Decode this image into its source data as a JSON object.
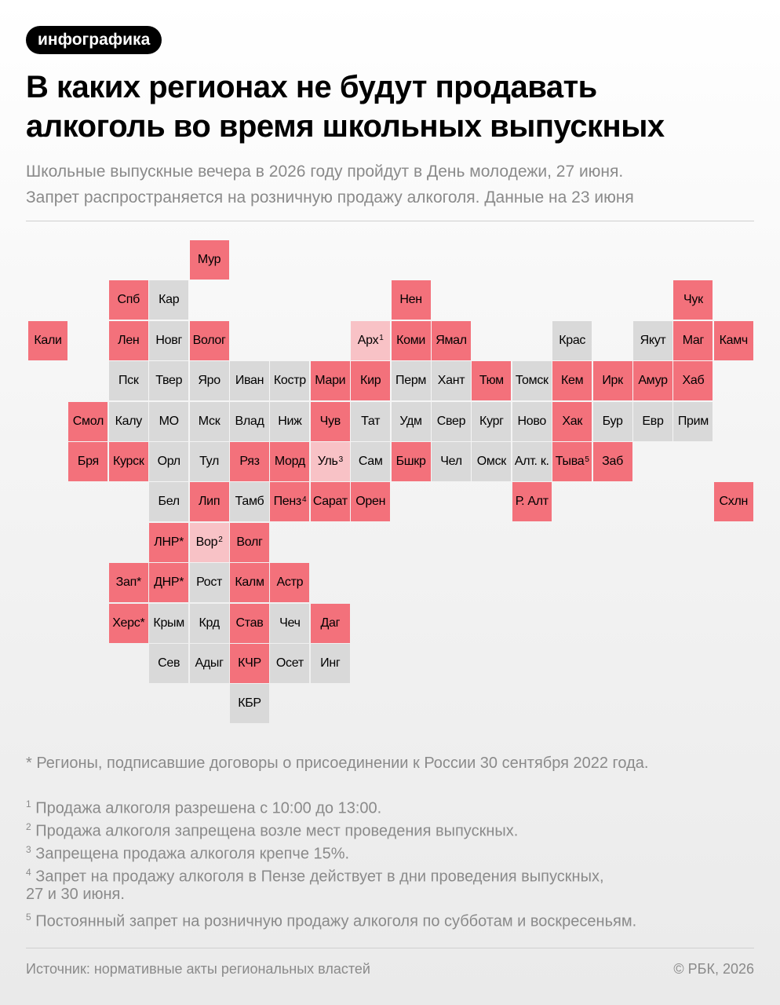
{
  "tag": "инфографика",
  "title_line1": "В каких регионах не будут продавать",
  "title_line2": "алкоголь во время школьных выпускных",
  "subtitle_line1": "Школьные выпускные вечера в 2026 году пройдут в День молодежи, 27 июня.",
  "subtitle_line2": "Запрет распространяется на розничную продажу алкоголя. Данные на 23 июня",
  "colors": {
    "full_ban": "#f3717b",
    "partial_ban": "#f8c2c6",
    "no_ban": "#d9d9d9"
  },
  "regions": [
    {
      "label": "Мур",
      "sup": "",
      "status": "full",
      "row": 0,
      "col": 4
    },
    {
      "label": "Спб",
      "sup": "",
      "status": "full",
      "row": 1,
      "col": 2
    },
    {
      "label": "Кар",
      "sup": "",
      "status": "none",
      "row": 1,
      "col": 3
    },
    {
      "label": "Нен",
      "sup": "",
      "status": "full",
      "row": 1,
      "col": 9
    },
    {
      "label": "Чук",
      "sup": "",
      "status": "full",
      "row": 1,
      "col": 16
    },
    {
      "label": "Кали",
      "sup": "",
      "status": "full",
      "row": 2,
      "col": 0
    },
    {
      "label": "Лен",
      "sup": "",
      "status": "full",
      "row": 2,
      "col": 2
    },
    {
      "label": "Новг",
      "sup": "",
      "status": "none",
      "row": 2,
      "col": 3
    },
    {
      "label": "Волог",
      "sup": "",
      "status": "full",
      "row": 2,
      "col": 4
    },
    {
      "label": "Арх",
      "sup": "1",
      "status": "part",
      "row": 2,
      "col": 8
    },
    {
      "label": "Коми",
      "sup": "",
      "status": "full",
      "row": 2,
      "col": 9
    },
    {
      "label": "Ямал",
      "sup": "",
      "status": "full",
      "row": 2,
      "col": 10
    },
    {
      "label": "Крас",
      "sup": "",
      "status": "none",
      "row": 2,
      "col": 13
    },
    {
      "label": "Якут",
      "sup": "",
      "status": "none",
      "row": 2,
      "col": 15
    },
    {
      "label": "Маг",
      "sup": "",
      "status": "full",
      "row": 2,
      "col": 16
    },
    {
      "label": "Камч",
      "sup": "",
      "status": "full",
      "row": 2,
      "col": 17
    },
    {
      "label": "Пск",
      "sup": "",
      "status": "none",
      "row": 3,
      "col": 2
    },
    {
      "label": "Твер",
      "sup": "",
      "status": "none",
      "row": 3,
      "col": 3
    },
    {
      "label": "Яро",
      "sup": "",
      "status": "none",
      "row": 3,
      "col": 4
    },
    {
      "label": "Иван",
      "sup": "",
      "status": "none",
      "row": 3,
      "col": 5
    },
    {
      "label": "Костр",
      "sup": "",
      "status": "none",
      "row": 3,
      "col": 6
    },
    {
      "label": "Мари",
      "sup": "",
      "status": "full",
      "row": 3,
      "col": 7
    },
    {
      "label": "Кир",
      "sup": "",
      "status": "full",
      "row": 3,
      "col": 8
    },
    {
      "label": "Перм",
      "sup": "",
      "status": "none",
      "row": 3,
      "col": 9
    },
    {
      "label": "Хант",
      "sup": "",
      "status": "none",
      "row": 3,
      "col": 10
    },
    {
      "label": "Тюм",
      "sup": "",
      "status": "full",
      "row": 3,
      "col": 11
    },
    {
      "label": "Томск",
      "sup": "",
      "status": "none",
      "row": 3,
      "col": 12
    },
    {
      "label": "Кем",
      "sup": "",
      "status": "full",
      "row": 3,
      "col": 13
    },
    {
      "label": "Ирк",
      "sup": "",
      "status": "full",
      "row": 3,
      "col": 14
    },
    {
      "label": "Амур",
      "sup": "",
      "status": "full",
      "row": 3,
      "col": 15
    },
    {
      "label": "Хаб",
      "sup": "",
      "status": "full",
      "row": 3,
      "col": 16
    },
    {
      "label": "Смол",
      "sup": "",
      "status": "full",
      "row": 4,
      "col": 1
    },
    {
      "label": "Калу",
      "sup": "",
      "status": "none",
      "row": 4,
      "col": 2
    },
    {
      "label": "МО",
      "sup": "",
      "status": "none",
      "row": 4,
      "col": 3
    },
    {
      "label": "Мск",
      "sup": "",
      "status": "none",
      "row": 4,
      "col": 4
    },
    {
      "label": "Влад",
      "sup": "",
      "status": "none",
      "row": 4,
      "col": 5
    },
    {
      "label": "Ниж",
      "sup": "",
      "status": "none",
      "row": 4,
      "col": 6
    },
    {
      "label": "Чув",
      "sup": "",
      "status": "full",
      "row": 4,
      "col": 7
    },
    {
      "label": "Тат",
      "sup": "",
      "status": "none",
      "row": 4,
      "col": 8
    },
    {
      "label": "Удм",
      "sup": "",
      "status": "none",
      "row": 4,
      "col": 9
    },
    {
      "label": "Свер",
      "sup": "",
      "status": "none",
      "row": 4,
      "col": 10
    },
    {
      "label": "Кург",
      "sup": "",
      "status": "none",
      "row": 4,
      "col": 11
    },
    {
      "label": "Ново",
      "sup": "",
      "status": "none",
      "row": 4,
      "col": 12
    },
    {
      "label": "Хак",
      "sup": "",
      "status": "full",
      "row": 4,
      "col": 13
    },
    {
      "label": "Бур",
      "sup": "",
      "status": "none",
      "row": 4,
      "col": 14
    },
    {
      "label": "Евр",
      "sup": "",
      "status": "none",
      "row": 4,
      "col": 15
    },
    {
      "label": "Прим",
      "sup": "",
      "status": "none",
      "row": 4,
      "col": 16
    },
    {
      "label": "Бря",
      "sup": "",
      "status": "full",
      "row": 5,
      "col": 1
    },
    {
      "label": "Курск",
      "sup": "",
      "status": "full",
      "row": 5,
      "col": 2
    },
    {
      "label": "Орл",
      "sup": "",
      "status": "none",
      "row": 5,
      "col": 3
    },
    {
      "label": "Тул",
      "sup": "",
      "status": "none",
      "row": 5,
      "col": 4
    },
    {
      "label": "Ряз",
      "sup": "",
      "status": "full",
      "row": 5,
      "col": 5
    },
    {
      "label": "Морд",
      "sup": "",
      "status": "full",
      "row": 5,
      "col": 6
    },
    {
      "label": "Уль",
      "sup": "3",
      "status": "part",
      "row": 5,
      "col": 7
    },
    {
      "label": "Сам",
      "sup": "",
      "status": "none",
      "row": 5,
      "col": 8
    },
    {
      "label": "Бшкр",
      "sup": "",
      "status": "full",
      "row": 5,
      "col": 9
    },
    {
      "label": "Чел",
      "sup": "",
      "status": "none",
      "row": 5,
      "col": 10
    },
    {
      "label": "Омск",
      "sup": "",
      "status": "none",
      "row": 5,
      "col": 11
    },
    {
      "label": "Алт. к.",
      "sup": "",
      "status": "none",
      "row": 5,
      "col": 12
    },
    {
      "label": "Тыва",
      "sup": "5",
      "status": "full",
      "row": 5,
      "col": 13
    },
    {
      "label": "Заб",
      "sup": "",
      "status": "full",
      "row": 5,
      "col": 14
    },
    {
      "label": "Бел",
      "sup": "",
      "status": "none",
      "row": 6,
      "col": 3
    },
    {
      "label": "Лип",
      "sup": "",
      "status": "full",
      "row": 6,
      "col": 4
    },
    {
      "label": "Тамб",
      "sup": "",
      "status": "none",
      "row": 6,
      "col": 5
    },
    {
      "label": "Пенз",
      "sup": "4",
      "status": "full",
      "row": 6,
      "col": 6
    },
    {
      "label": "Сарат",
      "sup": "",
      "status": "full",
      "row": 6,
      "col": 7
    },
    {
      "label": "Орен",
      "sup": "",
      "status": "full",
      "row": 6,
      "col": 8
    },
    {
      "label": "Р. Алт",
      "sup": "",
      "status": "full",
      "row": 6,
      "col": 12
    },
    {
      "label": "Схлн",
      "sup": "",
      "status": "full",
      "row": 6,
      "col": 17
    },
    {
      "label": "ЛНР*",
      "sup": "",
      "status": "full",
      "row": 7,
      "col": 3
    },
    {
      "label": "Вор",
      "sup": "2",
      "status": "part",
      "row": 7,
      "col": 4
    },
    {
      "label": "Волг",
      "sup": "",
      "status": "full",
      "row": 7,
      "col": 5
    },
    {
      "label": "Зап*",
      "sup": "",
      "status": "full",
      "row": 8,
      "col": 2
    },
    {
      "label": "ДНР*",
      "sup": "",
      "status": "full",
      "row": 8,
      "col": 3
    },
    {
      "label": "Рост",
      "sup": "",
      "status": "none",
      "row": 8,
      "col": 4
    },
    {
      "label": "Калм",
      "sup": "",
      "status": "full",
      "row": 8,
      "col": 5
    },
    {
      "label": "Астр",
      "sup": "",
      "status": "full",
      "row": 8,
      "col": 6
    },
    {
      "label": "Херс*",
      "sup": "",
      "status": "full",
      "row": 9,
      "col": 2
    },
    {
      "label": "Крым",
      "sup": "",
      "status": "none",
      "row": 9,
      "col": 3
    },
    {
      "label": "Крд",
      "sup": "",
      "status": "none",
      "row": 9,
      "col": 4
    },
    {
      "label": "Став",
      "sup": "",
      "status": "full",
      "row": 9,
      "col": 5
    },
    {
      "label": "Чеч",
      "sup": "",
      "status": "none",
      "row": 9,
      "col": 6
    },
    {
      "label": "Даг",
      "sup": "",
      "status": "full",
      "row": 9,
      "col": 7
    },
    {
      "label": "Сев",
      "sup": "",
      "status": "none",
      "row": 10,
      "col": 3
    },
    {
      "label": "Адыг",
      "sup": "",
      "status": "none",
      "row": 10,
      "col": 4
    },
    {
      "label": "КЧР",
      "sup": "",
      "status": "full",
      "row": 10,
      "col": 5
    },
    {
      "label": "Осет",
      "sup": "",
      "status": "none",
      "row": 10,
      "col": 6
    },
    {
      "label": "Инг",
      "sup": "",
      "status": "none",
      "row": 10,
      "col": 7
    },
    {
      "label": "КБР",
      "sup": "",
      "status": "none",
      "row": 11,
      "col": 5
    }
  ],
  "note_star": "* Регионы, подписавшие договоры о присоединении к России 30 сентября 2022 года.",
  "footnotes": [
    {
      "mark": "1",
      "text": "Продажа алкоголя разрешена с 10:00 до 13:00."
    },
    {
      "mark": "2",
      "text": "Продажа алкоголя запрещена возле мест проведения выпускных."
    },
    {
      "mark": "3",
      "text": "Запрещена продажа алкоголя крепче 15%."
    },
    {
      "mark": "4",
      "text": "Запрет на продажу алкоголя в Пензе действует в дни проведения выпускных,"
    },
    {
      "mark": "",
      "text": "27 и 30 июня."
    },
    {
      "mark": "5",
      "text": "Постоянный запрет на розничную продажу алкоголя по субботам и воскресеньям."
    }
  ],
  "source": "Источник: нормативные акты региональных властей",
  "copyright": "© РБК, 2026"
}
